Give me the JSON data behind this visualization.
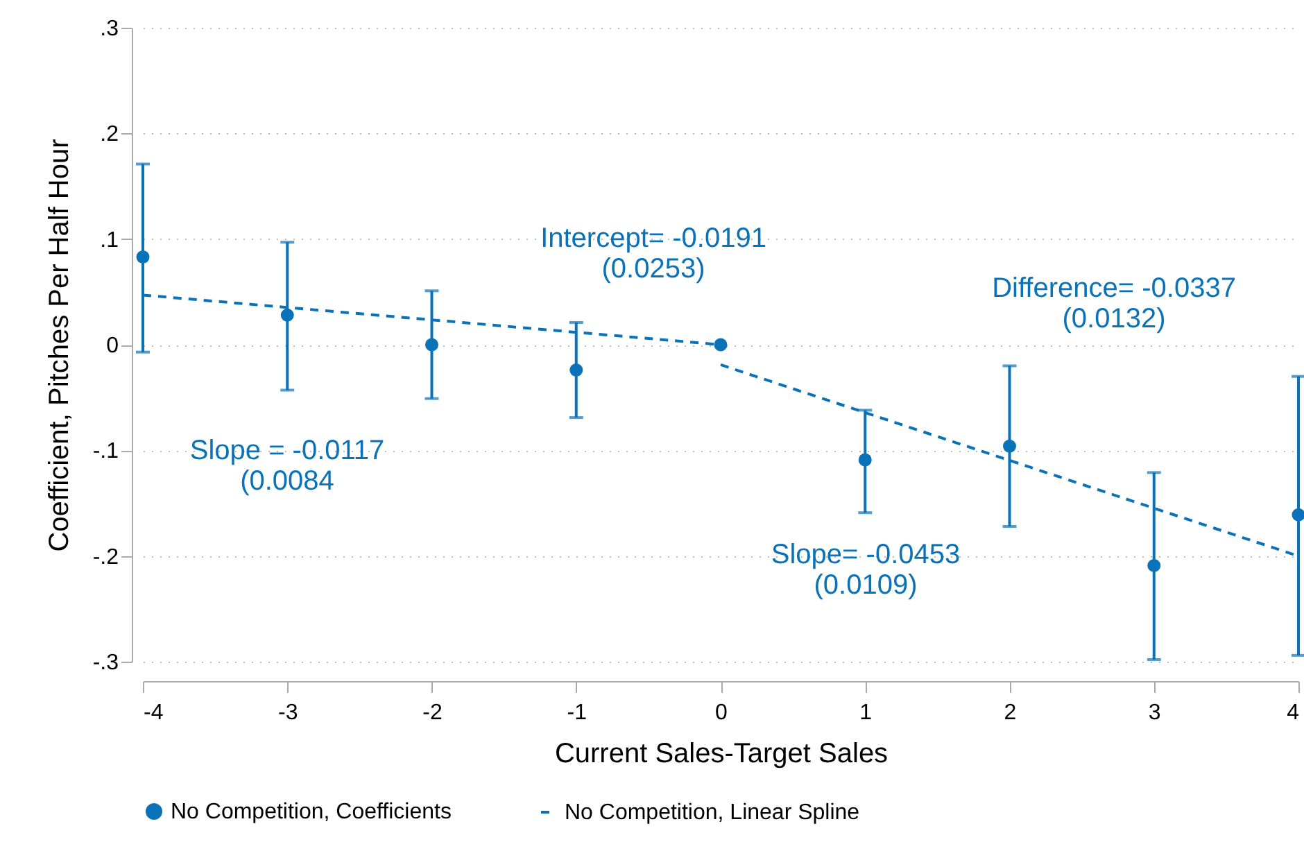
{
  "chart_data": {
    "type": "scatter",
    "xlabel": "Current Sales-Target Sales",
    "ylabel": "Coefficient, Pitches Per Half Hour",
    "x": [
      -4,
      -3,
      -2,
      -1,
      0,
      1,
      2,
      3,
      4
    ],
    "series": [
      {
        "name": "No Competition, Coefficients",
        "color": "#0a72b8",
        "marker": "circle",
        "values": [
          0.083,
          0.028,
          0.0,
          -0.024,
          0.0,
          -0.109,
          -0.096,
          -0.209,
          -0.161
        ],
        "errors": [
          [
            -0.007,
            0.171
          ],
          [
            -0.043,
            0.097
          ],
          [
            -0.051,
            0.051
          ],
          [
            -0.069,
            0.021
          ],
          null,
          [
            -0.159,
            -0.062
          ],
          [
            -0.172,
            -0.02
          ],
          [
            -0.298,
            -0.121
          ],
          [
            -0.294,
            -0.03
          ]
        ]
      },
      {
        "name": "No Competition, Linear Spline",
        "type": "line",
        "color": "#0a72b8",
        "line_style": "dashed",
        "x": [
          -4,
          0
        ],
        "values": [
          0.047,
          0.0
        ]
      },
      {
        "type": "line",
        "color": "#0a72b8",
        "line_style": "dashed",
        "x": [
          0,
          4
        ],
        "values": [
          -0.019,
          -0.2
        ]
      }
    ],
    "xlim": [
      -4,
      4
    ],
    "xticks": [
      -4,
      -3,
      -2,
      -1,
      0,
      1,
      2,
      3,
      4
    ],
    "ylim": [
      -0.3,
      0.3
    ],
    "yticks": [
      {
        "value": -0.3,
        "label": "-.3"
      },
      {
        "value": -0.2,
        "label": "-.2"
      },
      {
        "value": -0.1,
        "label": "-.1"
      },
      {
        "value": 0,
        "label": "0"
      },
      {
        "value": 0.1,
        "label": ".1"
      },
      {
        "value": 0.2,
        "label": ".2"
      },
      {
        "value": 0.3,
        "label": ".3"
      }
    ],
    "grid": "y",
    "legend": "bottom",
    "annotations": [
      "Intercept= -0.0191\n(0.0253)",
      "Difference= -0.0337\n(0.0132)",
      "Slope = -0.0117\n(0.0084",
      "Slope= -0.0453\n(0.0109)"
    ]
  }
}
